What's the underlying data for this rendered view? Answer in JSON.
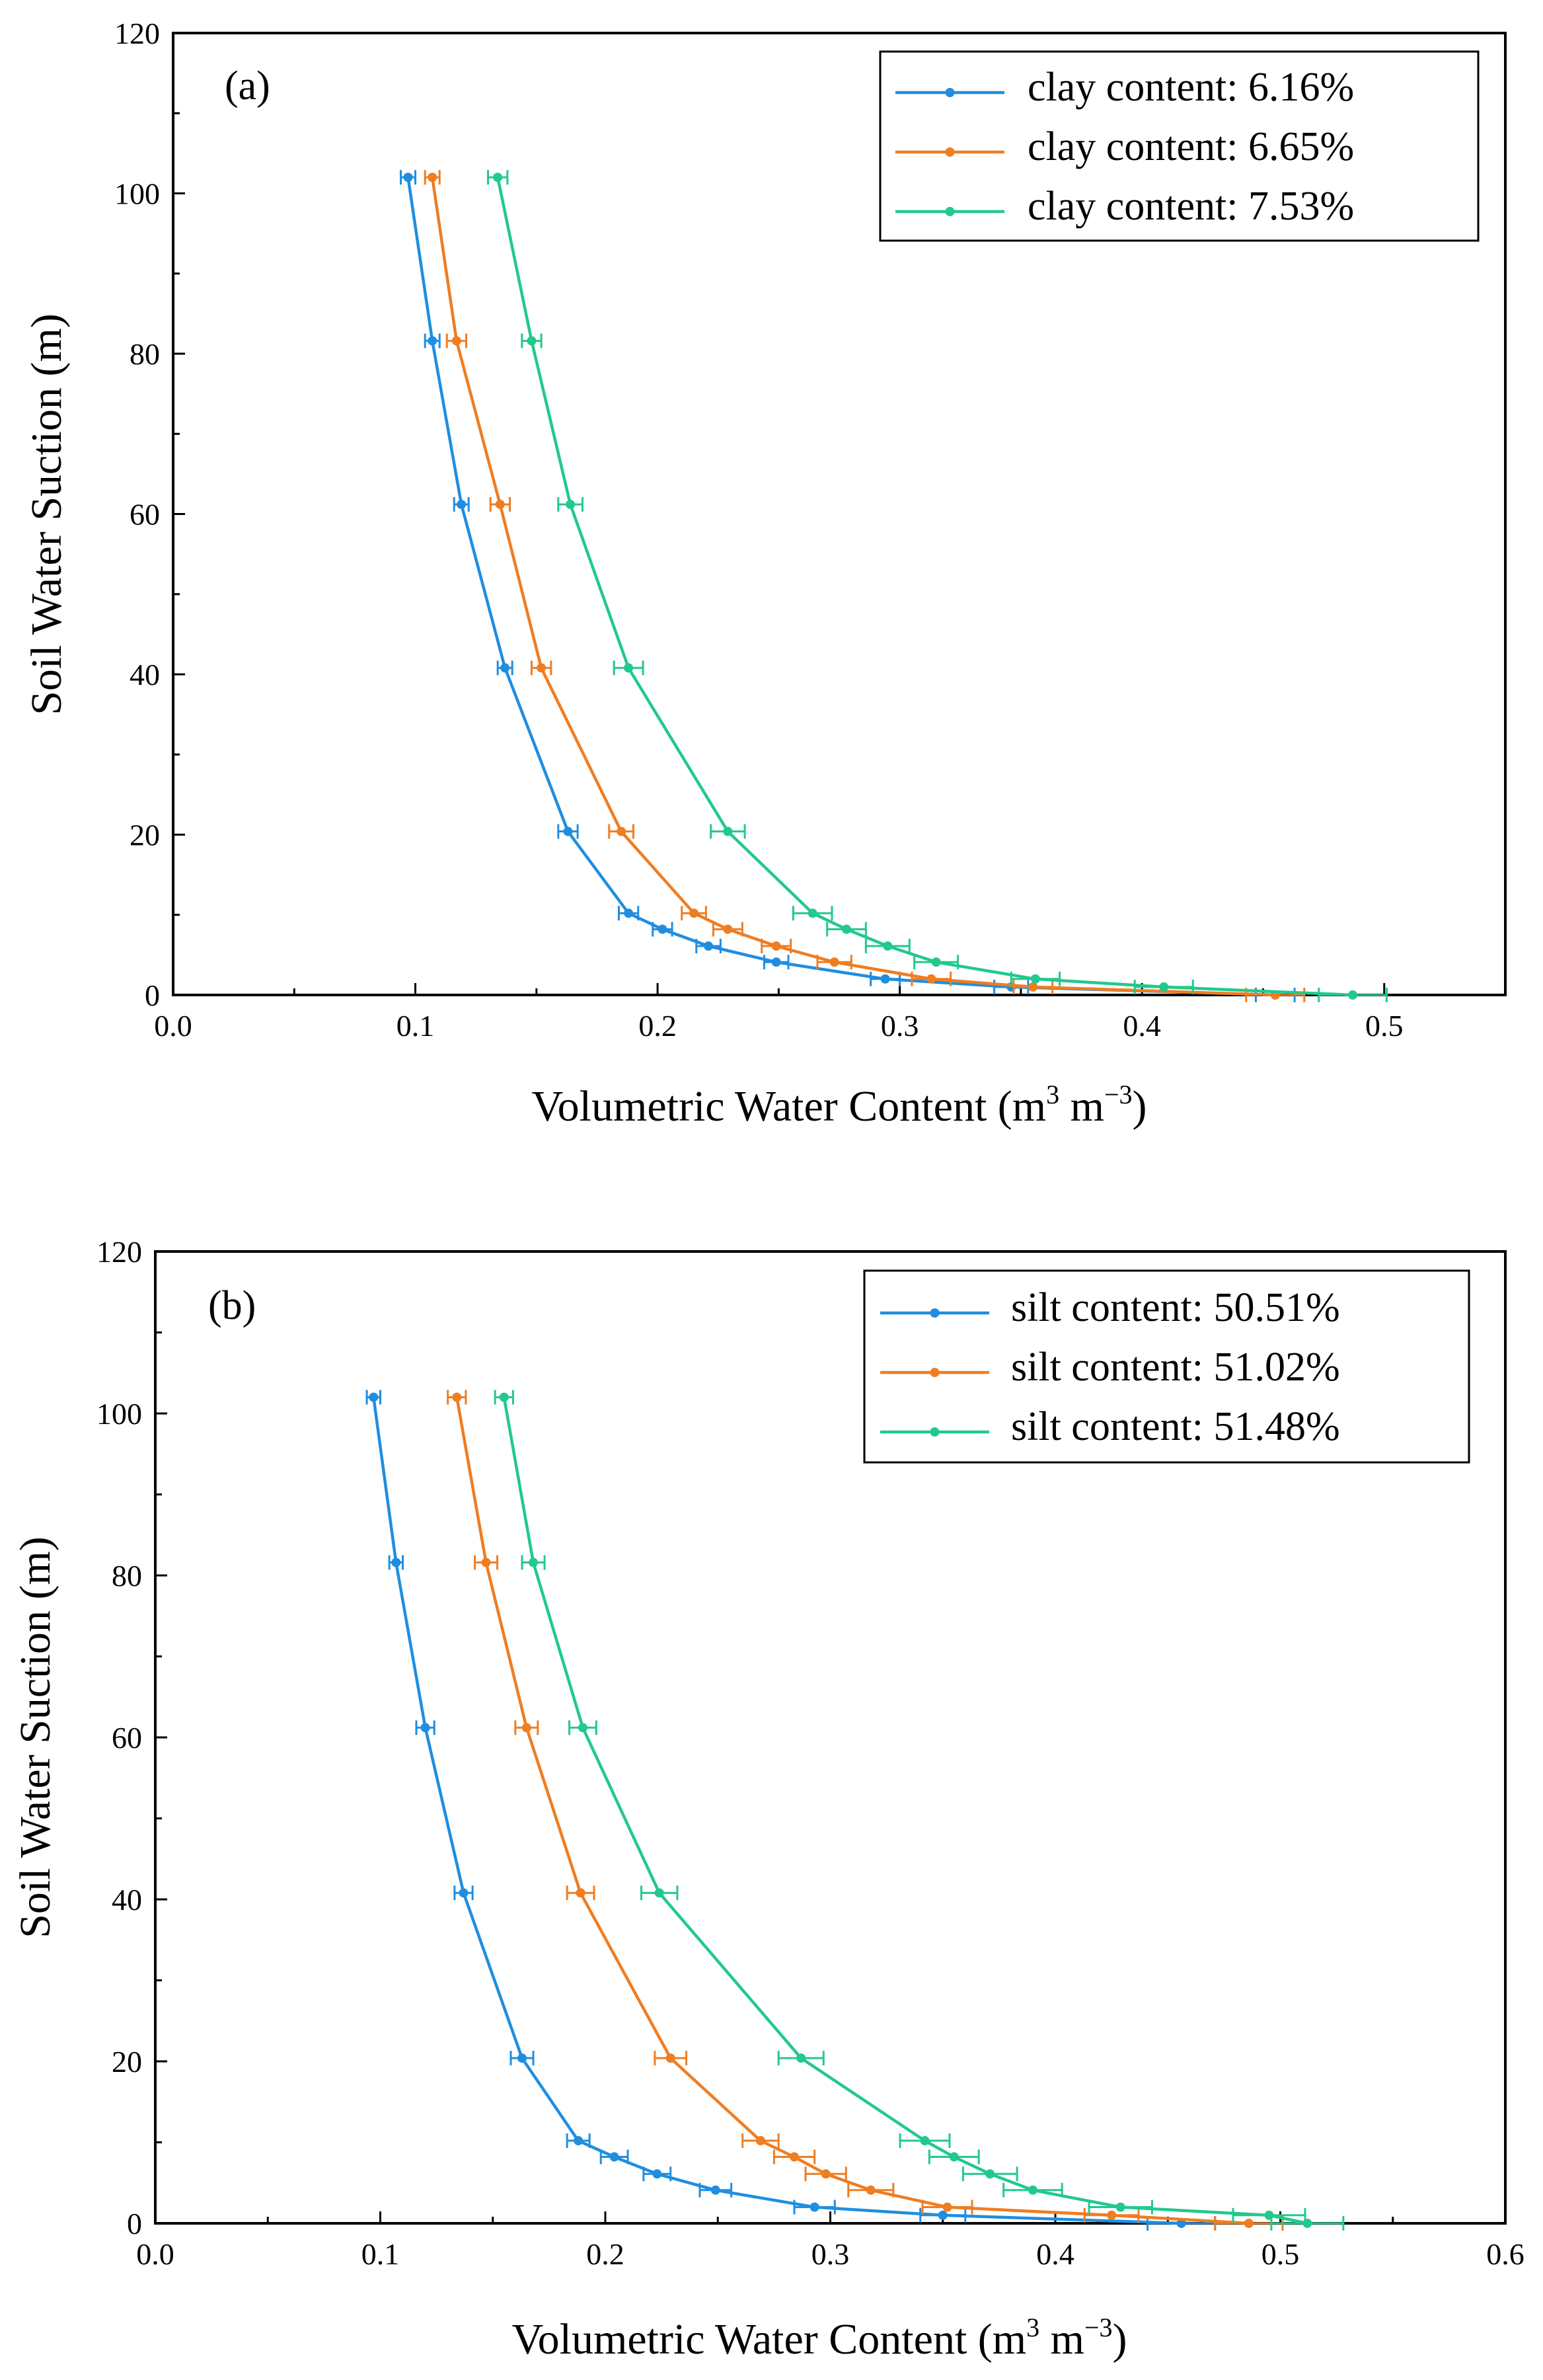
{
  "chart_data": [
    {
      "type": "line",
      "panel_label": "(a)",
      "xlabel": "Volumetric Water Content (m",
      "xlabel_sup1": "3",
      "xlabel_mid": " m",
      "xlabel_sup2": "−3",
      "xlabel_end": ")",
      "ylabel": "Soil Water Suction (m)",
      "xlim": [
        0,
        0.55
      ],
      "ylim": [
        0,
        120
      ],
      "xticks": [
        "0.0",
        "0.1",
        "0.2",
        "0.3",
        "0.4",
        "0.5"
      ],
      "yticks": [
        "0",
        "20",
        "40",
        "60",
        "80",
        "100",
        "120"
      ],
      "grid": false,
      "legend_position": "top-right",
      "y": [
        102,
        81.6,
        61.2,
        40.8,
        20.4,
        10.2,
        8.2,
        6.1,
        4.1,
        2.0,
        1.0,
        0
      ],
      "series": [
        {
          "name": "clay content: 6.16%",
          "color": "#1f8ee0",
          "x": [
            0.097,
            0.107,
            0.119,
            0.137,
            0.163,
            0.188,
            0.202,
            0.221,
            0.249,
            0.294,
            0.346,
            0.455
          ],
          "err": [
            0.003,
            0.003,
            0.003,
            0.003,
            0.004,
            0.004,
            0.004,
            0.005,
            0.005,
            0.006,
            0.007,
            0.008
          ]
        },
        {
          "name": "clay content: 6.65%",
          "color": "#ef7d22",
          "x": [
            0.107,
            0.117,
            0.135,
            0.152,
            0.185,
            0.215,
            0.229,
            0.249,
            0.273,
            0.313,
            0.355,
            0.455
          ],
          "err": [
            0.003,
            0.004,
            0.004,
            0.004,
            0.005,
            0.005,
            0.006,
            0.006,
            0.007,
            0.008,
            0.008,
            0.012
          ]
        },
        {
          "name": "clay content: 7.53%",
          "color": "#22c98c",
          "x": [
            0.134,
            0.148,
            0.164,
            0.188,
            0.229,
            0.264,
            0.278,
            0.295,
            0.315,
            0.356,
            0.409,
            0.487
          ],
          "err": [
            0.004,
            0.004,
            0.005,
            0.006,
            0.007,
            0.008,
            0.008,
            0.009,
            0.009,
            0.01,
            0.012,
            0.014
          ]
        }
      ]
    },
    {
      "type": "line",
      "panel_label": "(b)",
      "xlabel": "Volumetric Water Content (m",
      "xlabel_sup1": "3",
      "xlabel_mid": " m",
      "xlabel_sup2": "−3",
      "xlabel_end": ")",
      "ylabel": "Soil Water Suction (m)",
      "xlim": [
        0,
        0.6
      ],
      "ylim": [
        0,
        120
      ],
      "xticks": [
        "0.0",
        "0.1",
        "0.2",
        "0.3",
        "0.4",
        "0.5",
        "0.6"
      ],
      "yticks": [
        "0",
        "20",
        "40",
        "60",
        "80",
        "100",
        "120"
      ],
      "grid": false,
      "legend_position": "top-right",
      "y": [
        102,
        81.6,
        61.2,
        40.8,
        20.4,
        10.2,
        8.2,
        6.1,
        4.1,
        2.0,
        1.0,
        0
      ],
      "series": [
        {
          "name": "silt content: 50.51%",
          "color": "#1f8ee0",
          "x": [
            0.097,
            0.107,
            0.12,
            0.137,
            0.163,
            0.188,
            0.204,
            0.223,
            0.249,
            0.293,
            0.35,
            0.456
          ],
          "err": [
            0.003,
            0.003,
            0.004,
            0.004,
            0.005,
            0.005,
            0.006,
            0.006,
            0.007,
            0.009,
            0.01,
            0.015
          ]
        },
        {
          "name": "silt content: 51.02%",
          "color": "#ef7d22",
          "x": [
            0.134,
            0.147,
            0.165,
            0.189,
            0.229,
            0.269,
            0.284,
            0.298,
            0.318,
            0.352,
            0.425,
            0.486
          ],
          "err": [
            0.004,
            0.005,
            0.005,
            0.006,
            0.007,
            0.008,
            0.009,
            0.009,
            0.01,
            0.011,
            0.012,
            0.015
          ]
        },
        {
          "name": "silt content: 51.48%",
          "color": "#22c98c",
          "x": [
            0.155,
            0.168,
            0.19,
            0.224,
            0.287,
            0.342,
            0.355,
            0.371,
            0.39,
            0.429,
            0.495,
            0.512
          ],
          "err": [
            0.004,
            0.005,
            0.006,
            0.008,
            0.01,
            0.011,
            0.011,
            0.012,
            0.013,
            0.014,
            0.016,
            0.016
          ]
        }
      ]
    }
  ]
}
